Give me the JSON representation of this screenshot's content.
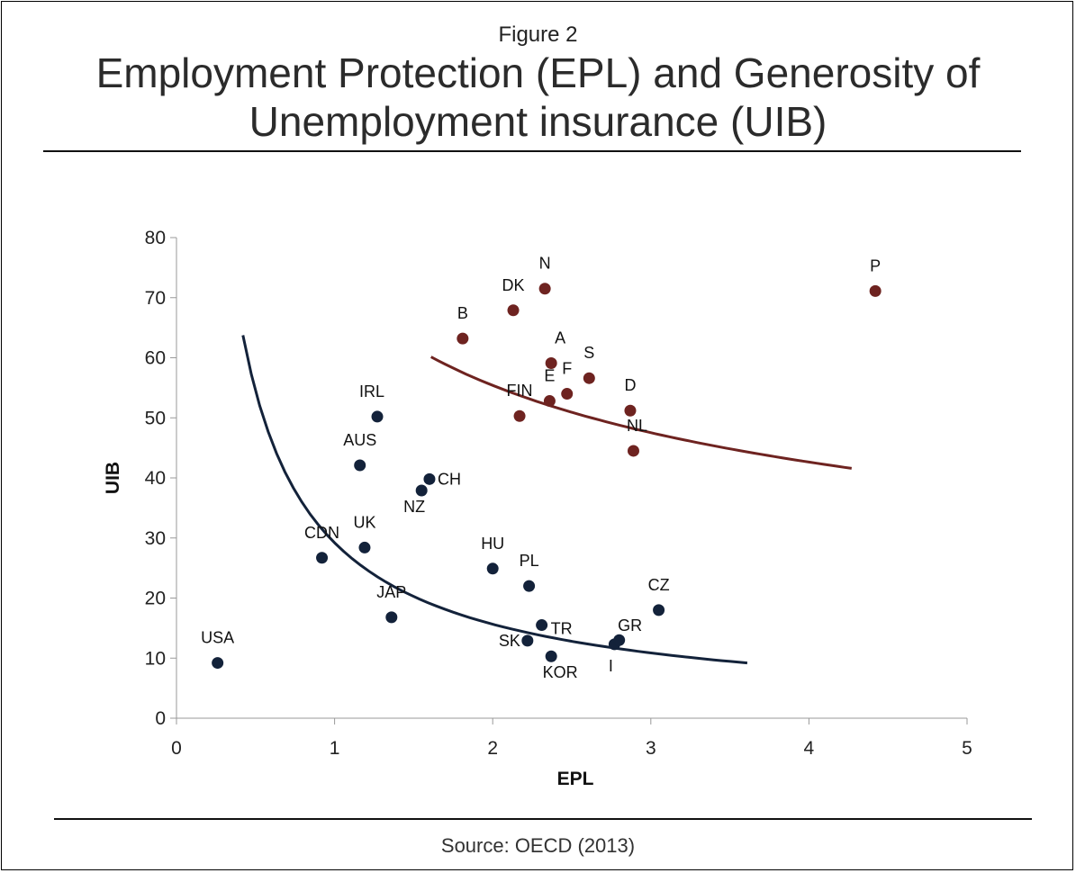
{
  "figure_label": "Figure 2",
  "title_line1": "Employment Protection (EPL) and Generosity of",
  "title_line2": "Unemployment insurance (UIB)",
  "source": "Source: OECD (2013)",
  "colors": {
    "navy": "#13223a",
    "maroon": "#6e2320"
  },
  "chart_data": {
    "type": "scatter",
    "xlabel": "EPL",
    "ylabel": "UIB",
    "xlim": [
      0,
      5
    ],
    "ylim": [
      0,
      80
    ],
    "xticks": [
      0,
      1,
      2,
      3,
      4,
      5
    ],
    "yticks": [
      0,
      10,
      20,
      30,
      40,
      50,
      60,
      70,
      80
    ],
    "grid": false,
    "series": [
      {
        "color": "#13223a",
        "points": [
          {
            "label": "USA",
            "x": 0.26,
            "y": 9.2
          },
          {
            "label": "CDN",
            "x": 0.92,
            "y": 26.7
          },
          {
            "label": "AUS",
            "x": 1.16,
            "y": 42.1
          },
          {
            "label": "UK",
            "x": 1.19,
            "y": 28.4
          },
          {
            "label": "IRL",
            "x": 1.27,
            "y": 50.2
          },
          {
            "label": "JAP",
            "x": 1.36,
            "y": 16.8
          },
          {
            "label": "NZ",
            "x": 1.55,
            "y": 37.9
          },
          {
            "label": "CH",
            "x": 1.6,
            "y": 39.8
          },
          {
            "label": "HU",
            "x": 2.0,
            "y": 24.9
          },
          {
            "label": "PL",
            "x": 2.23,
            "y": 22.0
          },
          {
            "label": "SK",
            "x": 2.22,
            "y": 12.9
          },
          {
            "label": "TR",
            "x": 2.31,
            "y": 15.5
          },
          {
            "label": "KOR",
            "x": 2.37,
            "y": 10.3
          },
          {
            "label": "I",
            "x": 2.77,
            "y": 12.3
          },
          {
            "label": "GR",
            "x": 2.8,
            "y": 13.0
          },
          {
            "label": "CZ",
            "x": 3.05,
            "y": 18.0
          }
        ],
        "trend": {
          "kind": "power",
          "a": 29.2,
          "b": -0.9,
          "x_from": 0.42,
          "x_to": 3.61
        }
      },
      {
        "color": "#6e2320",
        "points": [
          {
            "label": "B",
            "x": 1.81,
            "y": 63.2
          },
          {
            "label": "DK",
            "x": 2.13,
            "y": 67.9
          },
          {
            "label": "N",
            "x": 2.33,
            "y": 71.5
          },
          {
            "label": "A",
            "x": 2.37,
            "y": 59.1
          },
          {
            "label": "FIN",
            "x": 2.17,
            "y": 50.3
          },
          {
            "label": "E",
            "x": 2.36,
            "y": 52.8
          },
          {
            "label": "F",
            "x": 2.47,
            "y": 54.0
          },
          {
            "label": "S",
            "x": 2.61,
            "y": 56.6
          },
          {
            "label": "D",
            "x": 2.87,
            "y": 51.2
          },
          {
            "label": "NL",
            "x": 2.89,
            "y": 44.5
          },
          {
            "label": "P",
            "x": 4.42,
            "y": 71.1
          }
        ],
        "trend": {
          "kind": "power",
          "a": 72.0,
          "b": -0.378,
          "x_from": 1.61,
          "x_to": 4.27
        }
      }
    ]
  }
}
